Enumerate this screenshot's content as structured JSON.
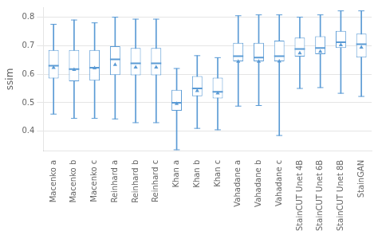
{
  "chart_data": {
    "type": "box",
    "categories": [
      "Macenko a",
      "Macenko b",
      "Macenko c",
      "Reinhard a",
      "Reinhard b",
      "Reinhard c",
      "Khan a",
      "Khan b",
      "Khan c",
      "Vahadane a",
      "Vahadane b",
      "Vahadane c",
      "StainCUT Unet 4B",
      "StainCUT Unet 6B",
      "StainCUT Unet 8B",
      "StainGAN"
    ],
    "boxes": [
      {
        "whislo": 0.46,
        "q1": 0.585,
        "med": 0.63,
        "q3": 0.685,
        "whishi": 0.775,
        "mean": 0.623
      },
      {
        "whislo": 0.445,
        "q1": 0.575,
        "med": 0.618,
        "q3": 0.685,
        "whishi": 0.79,
        "mean": 0.616
      },
      {
        "whislo": 0.445,
        "q1": 0.577,
        "med": 0.623,
        "q3": 0.685,
        "whishi": 0.78,
        "mean": 0.621
      },
      {
        "whislo": 0.443,
        "q1": 0.597,
        "med": 0.652,
        "q3": 0.698,
        "whishi": 0.8,
        "mean": 0.633
      },
      {
        "whislo": 0.43,
        "q1": 0.596,
        "med": 0.638,
        "q3": 0.692,
        "whishi": 0.793,
        "mean": 0.624
      },
      {
        "whislo": 0.43,
        "q1": 0.596,
        "med": 0.638,
        "q3": 0.692,
        "whishi": 0.793,
        "mean": 0.624
      },
      {
        "whislo": 0.335,
        "q1": 0.472,
        "med": 0.5,
        "q3": 0.545,
        "whishi": 0.62,
        "mean": 0.496
      },
      {
        "whislo": 0.41,
        "q1": 0.523,
        "med": 0.55,
        "q3": 0.593,
        "whishi": 0.665,
        "mean": 0.542
      },
      {
        "whislo": 0.405,
        "q1": 0.515,
        "med": 0.538,
        "q3": 0.588,
        "whishi": 0.658,
        "mean": 0.533
      },
      {
        "whislo": 0.488,
        "q1": 0.645,
        "med": 0.663,
        "q3": 0.71,
        "whishi": 0.805,
        "mean": 0.644
      },
      {
        "whislo": 0.49,
        "q1": 0.645,
        "med": 0.658,
        "q3": 0.71,
        "whishi": 0.808,
        "mean": 0.644
      },
      {
        "whislo": 0.385,
        "q1": 0.645,
        "med": 0.663,
        "q3": 0.718,
        "whishi": 0.808,
        "mean": 0.645
      },
      {
        "whislo": 0.55,
        "q1": 0.662,
        "med": 0.688,
        "q3": 0.728,
        "whishi": 0.8,
        "mean": 0.674
      },
      {
        "whislo": 0.553,
        "q1": 0.67,
        "med": 0.692,
        "q3": 0.733,
        "whishi": 0.808,
        "mean": 0.679
      },
      {
        "whislo": 0.533,
        "q1": 0.692,
        "med": 0.712,
        "q3": 0.752,
        "whishi": 0.822,
        "mean": 0.702
      },
      {
        "whislo": 0.522,
        "q1": 0.658,
        "med": 0.705,
        "q3": 0.742,
        "whishi": 0.822,
        "mean": 0.694
      }
    ],
    "ylabel": "ssim",
    "ylim": [
      0.33,
      0.835
    ],
    "yticks": [
      0.4,
      0.5,
      0.6,
      0.7,
      0.8
    ],
    "color": "#5b9bd5",
    "grid": true
  }
}
